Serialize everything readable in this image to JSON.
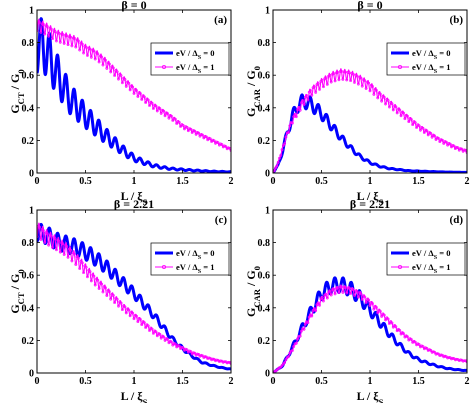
{
  "chart_data": [
    {
      "type": "line",
      "panel_label": "(a)",
      "beta_label": "β = 0",
      "xlabel_main": "L / ξ",
      "xlabel_sub": "S",
      "ylabel_main": "G",
      "ylabel_sub": "CT",
      "ylabel_tail": " / G",
      "ylabel_tail_sub": "0",
      "xlim": [
        0,
        2
      ],
      "ylim": [
        0,
        1
      ],
      "xticks": [
        "0",
        "0.5",
        "1",
        "1.5",
        "2"
      ],
      "yticks": [
        "0",
        "0.2",
        "0.4",
        "0.6",
        "0.8",
        "1"
      ],
      "legend": {
        "placement": "right",
        "entries": [
          {
            "main": "eV / Δ",
            "sub": "S",
            "tail": " = 0"
          },
          {
            "main": "eV / Δ",
            "sub": "S",
            "tail": " = 1"
          }
        ]
      },
      "series": [
        {
          "color": "#0000ff",
          "style": "thick-line",
          "amp": 0.34,
          "wave_x": 0.085,
          "x": [
            0,
            0.05,
            0.1,
            0.15,
            0.2,
            0.25,
            0.3,
            0.35,
            0.4,
            0.5,
            0.6,
            0.7,
            0.8,
            0.9,
            1.0,
            1.1,
            1.2,
            1.3,
            1.4,
            1.5,
            1.6,
            1.8,
            2.0
          ],
          "y": [
            0.93,
            0.95,
            0.9,
            0.82,
            0.74,
            0.67,
            0.6,
            0.54,
            0.5,
            0.42,
            0.35,
            0.28,
            0.22,
            0.16,
            0.11,
            0.08,
            0.055,
            0.04,
            0.03,
            0.025,
            0.02,
            0.012,
            0.008
          ]
        },
        {
          "color": "#ff00ff",
          "style": "thin-marker",
          "amp": 0.08,
          "wave_x": 0.04,
          "x": [
            0,
            0.1,
            0.2,
            0.3,
            0.4,
            0.5,
            0.6,
            0.7,
            0.8,
            0.9,
            1.0,
            1.1,
            1.2,
            1.3,
            1.4,
            1.5,
            1.6,
            1.7,
            1.8,
            1.9,
            2.0
          ],
          "y": [
            0.95,
            0.92,
            0.88,
            0.86,
            0.84,
            0.79,
            0.76,
            0.71,
            0.65,
            0.59,
            0.53,
            0.48,
            0.43,
            0.39,
            0.35,
            0.3,
            0.27,
            0.24,
            0.21,
            0.18,
            0.15
          ]
        }
      ]
    },
    {
      "type": "line",
      "panel_label": "(b)",
      "beta_label": "β = 0",
      "xlabel_main": "L / ξ",
      "xlabel_sub": "S",
      "ylabel_main": "G",
      "ylabel_sub": "CAR",
      "ylabel_tail": " / G",
      "ylabel_tail_sub": "0",
      "xlim": [
        0,
        2
      ],
      "ylim": [
        0,
        1
      ],
      "xticks": [
        "0",
        "0.5",
        "1",
        "1.5",
        "2"
      ],
      "yticks": [
        "0",
        "0.2",
        "0.4",
        "0.6",
        "0.8",
        "1"
      ],
      "legend": {
        "placement": "right",
        "entries": [
          {
            "main": "eV / Δ",
            "sub": "S",
            "tail": " = 0"
          },
          {
            "main": "eV / Δ",
            "sub": "S",
            "tail": " = 1"
          }
        ]
      },
      "series": [
        {
          "color": "#0000ff",
          "style": "thick-line",
          "amp": 0.18,
          "wave_x": 0.085,
          "x": [
            0,
            0.05,
            0.1,
            0.15,
            0.2,
            0.25,
            0.3,
            0.35,
            0.4,
            0.45,
            0.5,
            0.6,
            0.7,
            0.8,
            0.9,
            1.0,
            1.1,
            1.2,
            1.4,
            1.6,
            1.8,
            2.0
          ],
          "y": [
            0,
            0.05,
            0.15,
            0.28,
            0.38,
            0.45,
            0.48,
            0.48,
            0.46,
            0.43,
            0.4,
            0.32,
            0.24,
            0.17,
            0.11,
            0.07,
            0.045,
            0.03,
            0.015,
            0.01,
            0.006,
            0.004
          ]
        },
        {
          "color": "#ff00ff",
          "style": "thin-marker",
          "amp": 0.1,
          "wave_x": 0.04,
          "x": [
            0,
            0.05,
            0.1,
            0.15,
            0.2,
            0.3,
            0.4,
            0.5,
            0.6,
            0.7,
            0.8,
            0.9,
            1.0,
            1.1,
            1.2,
            1.3,
            1.4,
            1.5,
            1.6,
            1.7,
            1.8,
            1.9,
            2.0
          ],
          "y": [
            0,
            0.06,
            0.16,
            0.26,
            0.34,
            0.45,
            0.53,
            0.58,
            0.62,
            0.64,
            0.63,
            0.6,
            0.56,
            0.5,
            0.45,
            0.4,
            0.35,
            0.3,
            0.26,
            0.22,
            0.19,
            0.16,
            0.14
          ]
        }
      ]
    },
    {
      "type": "line",
      "panel_label": "(c)",
      "beta_label": "β = 2.21",
      "xlabel_main": "L / ξ",
      "xlabel_sub": "S",
      "ylabel_main": "G",
      "ylabel_sub": "CT",
      "ylabel_tail": " / G",
      "ylabel_tail_sub": "0",
      "xlim": [
        0,
        2
      ],
      "ylim": [
        0,
        1
      ],
      "xticks": [
        "0",
        "0.5",
        "1",
        "1.5",
        "2"
      ],
      "yticks": [
        "0",
        "0.2",
        "0.4",
        "0.6",
        "0.8",
        "1"
      ],
      "legend": {
        "placement": "right",
        "entries": [
          {
            "main": "eV / Δ",
            "sub": "S",
            "tail": " = 0"
          },
          {
            "main": "eV / Δ",
            "sub": "S",
            "tail": " = 1"
          }
        ]
      },
      "series": [
        {
          "color": "#0000ff",
          "style": "thick-line",
          "amp": 0.12,
          "wave_x": 0.085,
          "x": [
            0,
            0.1,
            0.2,
            0.3,
            0.4,
            0.5,
            0.6,
            0.7,
            0.8,
            0.9,
            1.0,
            1.1,
            1.2,
            1.3,
            1.4,
            1.5,
            1.6,
            1.7,
            1.8,
            1.9,
            2.0
          ],
          "y": [
            0.92,
            0.9,
            0.86,
            0.84,
            0.82,
            0.79,
            0.75,
            0.7,
            0.64,
            0.58,
            0.52,
            0.45,
            0.38,
            0.3,
            0.22,
            0.16,
            0.11,
            0.07,
            0.05,
            0.035,
            0.025
          ]
        },
        {
          "color": "#ff00ff",
          "style": "thin-marker",
          "amp": 0.1,
          "wave_x": 0.04,
          "x": [
            0,
            0.1,
            0.2,
            0.3,
            0.4,
            0.5,
            0.6,
            0.7,
            0.8,
            0.9,
            1.0,
            1.1,
            1.2,
            1.3,
            1.4,
            1.5,
            1.6,
            1.7,
            1.8,
            1.9,
            2.0
          ],
          "y": [
            0.93,
            0.88,
            0.84,
            0.8,
            0.74,
            0.67,
            0.6,
            0.54,
            0.48,
            0.42,
            0.37,
            0.32,
            0.27,
            0.23,
            0.19,
            0.16,
            0.13,
            0.11,
            0.09,
            0.075,
            0.065
          ]
        }
      ]
    },
    {
      "type": "line",
      "panel_label": "(d)",
      "beta_label": "β = 2.21",
      "xlabel_main": "L / ξ",
      "xlabel_sub": "S",
      "ylabel_main": "G",
      "ylabel_sub": "CAR",
      "ylabel_tail": " / G",
      "ylabel_tail_sub": "0",
      "xlim": [
        0,
        2
      ],
      "ylim": [
        0,
        1
      ],
      "xticks": [
        "0",
        "0.5",
        "1",
        "1.5",
        "2"
      ],
      "yticks": [
        "0",
        "0.2",
        "0.4",
        "0.6",
        "0.8",
        "1"
      ],
      "legend": {
        "placement": "right",
        "entries": [
          {
            "main": "eV / Δ",
            "sub": "S",
            "tail": " = 0"
          },
          {
            "main": "eV / Δ",
            "sub": "S",
            "tail": " = 1"
          }
        ]
      },
      "series": [
        {
          "color": "#0000ff",
          "style": "thick-line",
          "amp": 0.16,
          "wave_x": 0.085,
          "x": [
            0,
            0.1,
            0.2,
            0.3,
            0.4,
            0.5,
            0.6,
            0.7,
            0.8,
            0.9,
            1.0,
            1.1,
            1.2,
            1.3,
            1.4,
            1.5,
            1.6,
            1.7,
            1.8,
            1.9,
            2.0
          ],
          "y": [
            0,
            0.05,
            0.17,
            0.3,
            0.42,
            0.53,
            0.58,
            0.59,
            0.56,
            0.5,
            0.42,
            0.34,
            0.26,
            0.19,
            0.13,
            0.09,
            0.065,
            0.045,
            0.03,
            0.022,
            0.016
          ]
        },
        {
          "color": "#ff00ff",
          "style": "thin-marker",
          "amp": 0.08,
          "wave_x": 0.04,
          "x": [
            0,
            0.1,
            0.2,
            0.3,
            0.4,
            0.5,
            0.6,
            0.7,
            0.8,
            0.9,
            1.0,
            1.1,
            1.2,
            1.3,
            1.4,
            1.5,
            1.6,
            1.7,
            1.8,
            1.9,
            2.0
          ],
          "y": [
            0,
            0.05,
            0.15,
            0.27,
            0.38,
            0.47,
            0.52,
            0.54,
            0.53,
            0.5,
            0.45,
            0.39,
            0.33,
            0.27,
            0.22,
            0.18,
            0.15,
            0.12,
            0.1,
            0.085,
            0.075
          ]
        }
      ]
    }
  ]
}
